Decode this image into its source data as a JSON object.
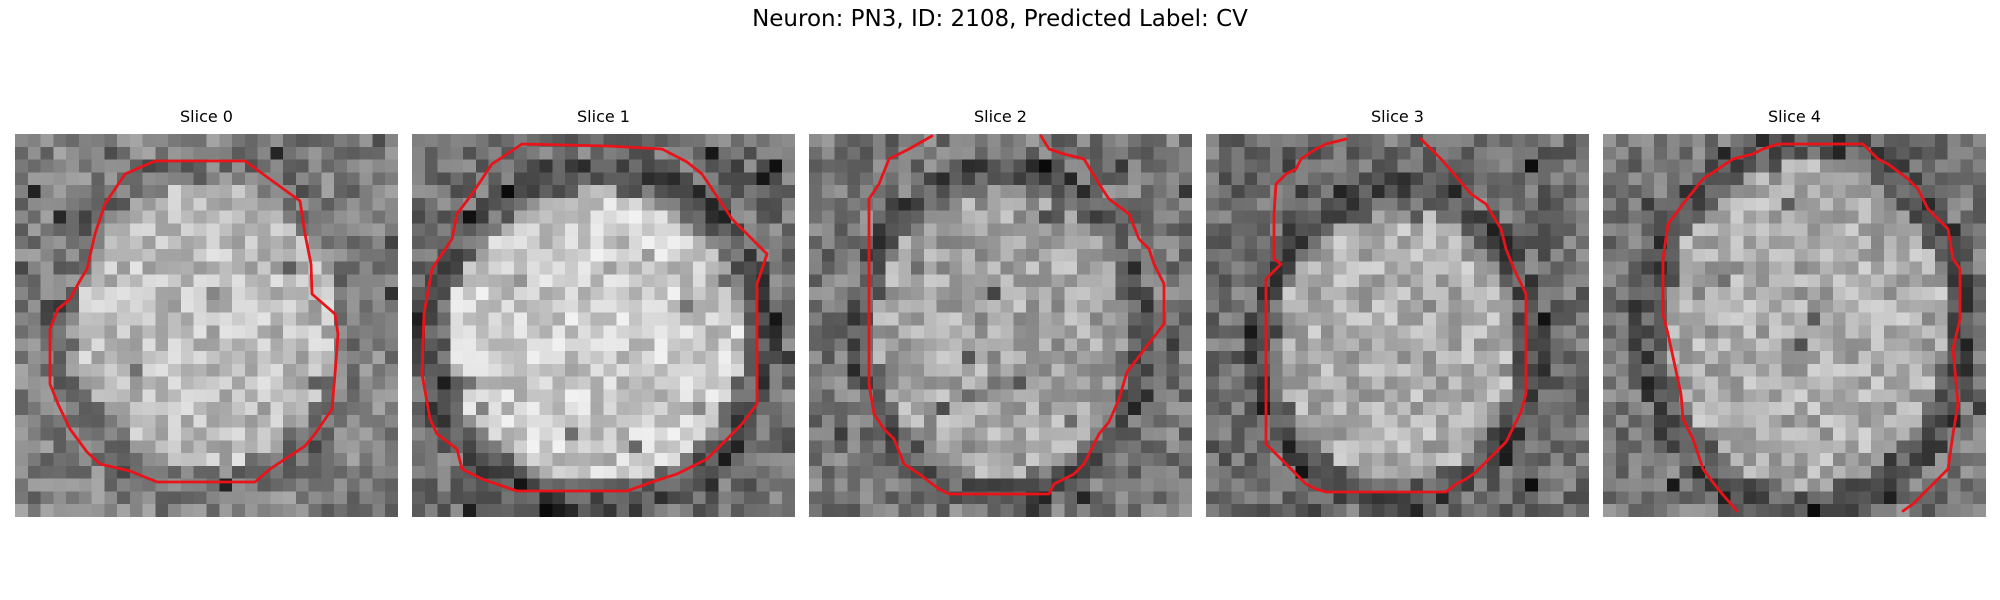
{
  "figure": {
    "title": "Neuron: PN3, ID: 2108, Predicted Label: CV",
    "contour_color": "#e8141a",
    "panels": [
      {
        "title": "Slice 0"
      },
      {
        "title": "Slice 1"
      },
      {
        "title": "Slice 2"
      },
      {
        "title": "Slice 3"
      },
      {
        "title": "Slice 4"
      }
    ]
  }
}
